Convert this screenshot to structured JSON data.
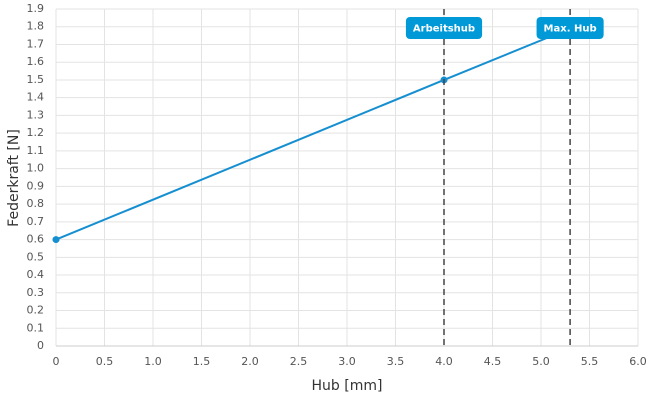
{
  "chart_data": {
    "type": "line",
    "x_label": "Hub [mm]",
    "y_label": "Federkraft [N]",
    "color": "#168fd1",
    "x": [
      0,
      4,
      5.3
    ],
    "values": [
      0.6,
      1.5,
      1.79
    ],
    "points": {
      "x": [
        0,
        4
      ],
      "values": [
        0.6,
        1.5
      ]
    },
    "annotations": [
      {
        "label": "Arbeitshub",
        "x": 4
      },
      {
        "label": "Max. Hub",
        "x": 5.3
      }
    ],
    "annotation_color": "#0099d8",
    "xlim": [
      0,
      6
    ],
    "ylim": [
      0,
      1.9
    ],
    "xticks": [
      0,
      0.5,
      {
        "value": 1,
        "label": "1.0"
      },
      1.5,
      {
        "value": 2,
        "label": "2.0"
      },
      2.5,
      {
        "value": 3,
        "label": "3.0"
      },
      3.5,
      {
        "value": 4,
        "label": "4.0"
      },
      4.5,
      {
        "value": 5,
        "label": "5.0"
      },
      5.5,
      {
        "value": 6,
        "label": "6.0"
      }
    ],
    "yticks": [
      0,
      0.1,
      0.2,
      0.3,
      0.4,
      0.5,
      0.6,
      0.7,
      0.8,
      0.9,
      {
        "value": 1,
        "label": "1.0"
      },
      1.1,
      1.2,
      1.3,
      1.4,
      1.5,
      1.6,
      1.7,
      1.8,
      1.9
    ],
    "grid": true
  }
}
